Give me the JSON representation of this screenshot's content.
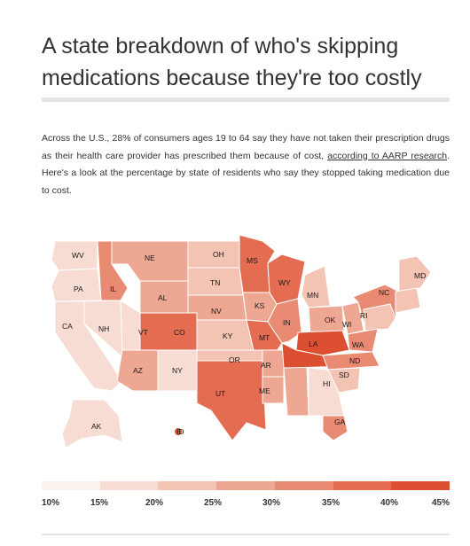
{
  "title": "A state breakdown of who's skipping medications because they're too costly",
  "intro": {
    "text_before": "Across the U.S., 28% of consumers ages 19 to 64 say they have not taken their prescription drugs as their health care provider has prescribed them because of cost, ",
    "link_text": "according to AARP research",
    "text_after": ". Here's a look at the percentage by state of residents who say they stopped taking medication due to cost."
  },
  "colors": {
    "c1": "#f7dcd3",
    "c2": "#f3c3b4",
    "c3": "#eea793",
    "c4": "#e98a72",
    "c5": "#e36c51",
    "c6": "#dd4f31"
  },
  "map_labels": {
    "wv": "WV",
    "ne": "NE",
    "oh": "OH",
    "ms": "MS",
    "pa": "PA",
    "il": "IL",
    "tn": "TN",
    "wy": "WY",
    "al": "AL",
    "mn": "MN",
    "nv": "NV",
    "ks": "KS",
    "nc": "NC",
    "md": "MD",
    "ca": "CA",
    "nh": "NH",
    "vt": "VT",
    "co": "CO",
    "in": "IN",
    "ok": "OK",
    "wi": "WI",
    "ri": "RI",
    "ky": "KY",
    "mt": "MT",
    "la": "LA",
    "wa": "WA",
    "or": "OR",
    "az": "AZ",
    "ny": "NY",
    "ar": "AR",
    "nd": "ND",
    "sd": "SD",
    "hi": "HI",
    "ut": "UT",
    "me": "ME",
    "ga": "GA",
    "ak": "AK",
    "id": "ID"
  },
  "legend": {
    "colors": [
      "#fbf1ed",
      "#f7dcd3",
      "#f3c3b4",
      "#eea793",
      "#e98a72",
      "#e36c51",
      "#dd4f31"
    ],
    "labels": [
      "10%",
      "15%",
      "20%",
      "25%",
      "30%",
      "35%",
      "40%",
      "45%"
    ]
  }
}
